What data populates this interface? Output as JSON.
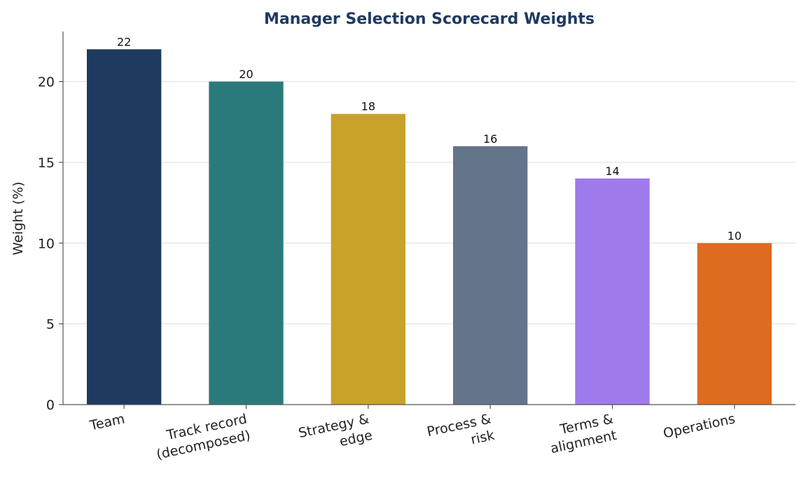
{
  "chart_data": {
    "type": "bar",
    "title": "Manager Selection Scorecard Weights",
    "xlabel": "",
    "ylabel": "Weight (%)",
    "ylim": [
      0,
      23.1
    ],
    "yticks": [
      0,
      5,
      10,
      15,
      20
    ],
    "grid": "horizontal",
    "categories": [
      [
        "Team"
      ],
      [
        "Track record",
        "(decomposed)"
      ],
      [
        "Strategy &",
        "edge"
      ],
      [
        "Process &",
        "risk"
      ],
      [
        "Terms &",
        "alignment"
      ],
      [
        "Operations"
      ]
    ],
    "values": [
      22,
      20,
      18,
      16,
      14,
      10
    ],
    "colors": [
      "#1f3a5f",
      "#2a7a7b",
      "#c9a22a",
      "#64748b",
      "#9f7aea",
      "#dd6b20"
    ],
    "title_color": "#1f3a5f"
  }
}
